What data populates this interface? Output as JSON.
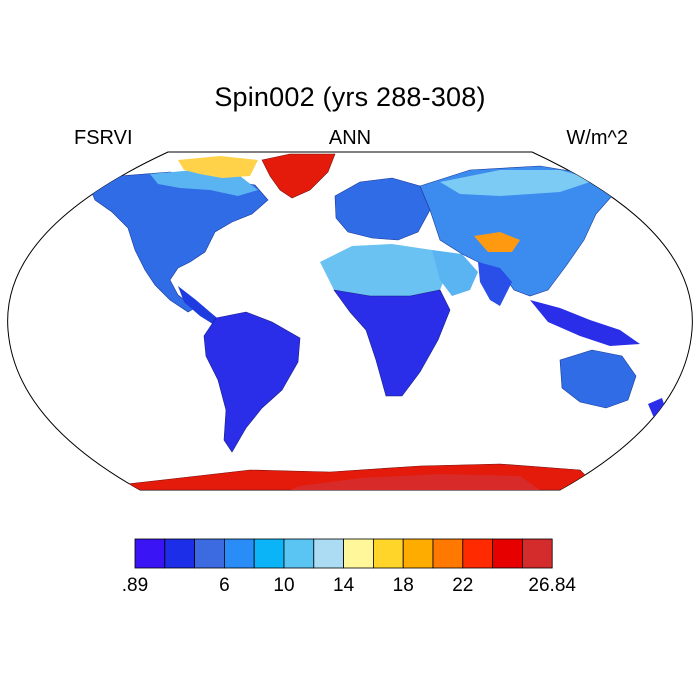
{
  "plot": {
    "title": "Spin002 (yrs 288-308)",
    "left_label": "FSRVI",
    "center_label": "ANN",
    "right_label": "W/m^2"
  },
  "map": {
    "projection": "Robinson",
    "field": "FSRVI",
    "ocean_color": "#ffffff",
    "regions": [
      {
        "name": "North America",
        "level": "low (~6-10)"
      },
      {
        "name": "Greenland",
        "level": "high (~26)"
      },
      {
        "name": "Arctic Canada",
        "level": "medium (~10-18)"
      },
      {
        "name": "South America",
        "level": "lowest (~1-6)"
      },
      {
        "name": "Europe",
        "level": "low (~6-10)"
      },
      {
        "name": "Sahara",
        "level": "medium (~10-14)"
      },
      {
        "name": "Central Africa",
        "level": "lowest (~1-6)"
      },
      {
        "name": "Asia",
        "level": "low-medium (~6-14)"
      },
      {
        "name": "Tibet",
        "level": "medium-high (~14-22)"
      },
      {
        "name": "Australia",
        "level": "low (~6-10)"
      },
      {
        "name": "Antarctica",
        "level": "highest (~24-26.84)"
      }
    ]
  },
  "colorbar": {
    "colors": [
      "#3a14f5",
      "#1c2ee8",
      "#3c6ae0",
      "#2a8cf6",
      "#0ab4f6",
      "#5ac4f2",
      "#acdcf4",
      "#fff79a",
      "#ffd52a",
      "#ffac00",
      "#ff7800",
      "#ff2a00",
      "#e60000",
      "#d42c2c"
    ],
    "tick_labels": [
      ".89",
      "6",
      "10",
      "14",
      "18",
      "22",
      "26.84"
    ],
    "tick_positions": [
      0,
      3,
      5,
      7,
      9,
      11,
      14
    ]
  }
}
